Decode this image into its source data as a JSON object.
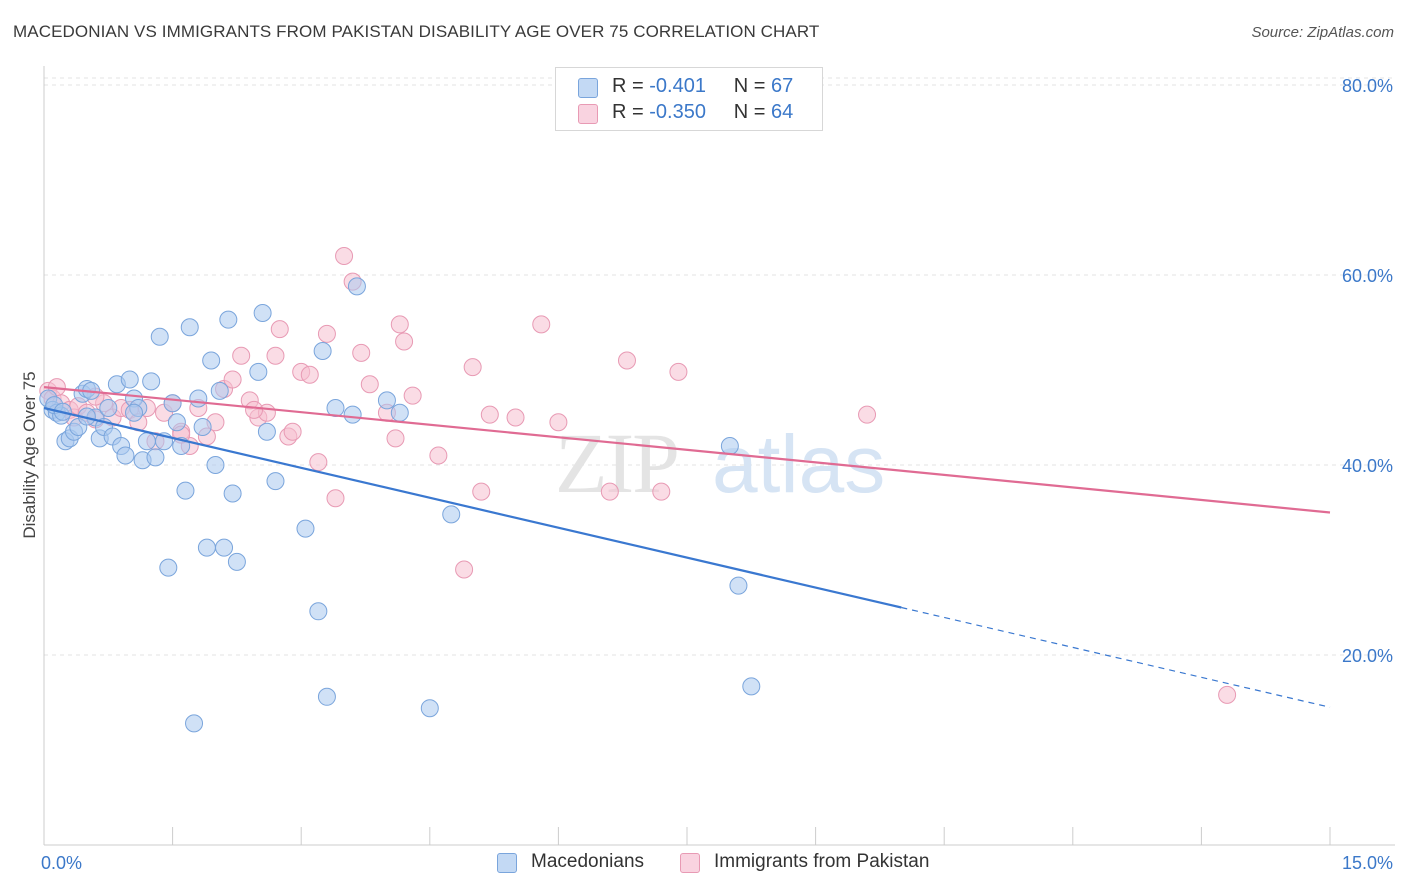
{
  "title": "MACEDONIAN VS IMMIGRANTS FROM PAKISTAN DISABILITY AGE OVER 75 CORRELATION CHART",
  "source": "Source: ZipAtlas.com",
  "watermark": {
    "zip": "ZIP",
    "atlas": "atlas"
  },
  "legend_top": [
    {
      "r_label": "R =",
      "r_value": "-0.401",
      "n_label": "N =",
      "n_value": "67"
    },
    {
      "r_label": "R =",
      "r_value": "-0.350",
      "n_label": "N =",
      "n_value": "64"
    }
  ],
  "legend_bottom": [
    "Macedonians",
    "Immigrants from Pakistan"
  ],
  "colors": {
    "blue_fill": "#a9c8ef",
    "blue_stroke": "#7aa5dc",
    "blue_line": "#3a78d0",
    "pink_fill": "#f5bfd0",
    "pink_stroke": "#e89ab4",
    "pink_line": "#e06b93",
    "grid": "#e3e3e3",
    "axis_text": "#3b78c9"
  },
  "chart_data": {
    "type": "scatter",
    "title": "MACEDONIAN VS IMMIGRANTS FROM PAKISTAN DISABILITY AGE OVER 75 CORRELATION CHART",
    "xlabel": "",
    "ylabel": "Disability Age Over 75",
    "xlim": [
      0,
      15
    ],
    "ylim": [
      0,
      82
    ],
    "x_ticks": [
      {
        "value": 0,
        "label": "0.0%"
      },
      {
        "value": 15,
        "label": "15.0%"
      }
    ],
    "y_ticks": [
      {
        "value": 20,
        "label": "20.0%"
      },
      {
        "value": 40,
        "label": "40.0%"
      },
      {
        "value": 60,
        "label": "60.0%"
      },
      {
        "value": 80,
        "label": "80.0%"
      }
    ],
    "grid": true,
    "legend_position": "top-center",
    "series": [
      {
        "name": "Macedonians",
        "R": -0.401,
        "N": 67,
        "trend": {
          "x0": 0.0,
          "y0": 46.0,
          "x1": 10.0,
          "y1": 25.0,
          "dash_to_x": 15.0,
          "dash_to_y": 14.5
        },
        "points": [
          [
            0.05,
            47.0
          ],
          [
            0.1,
            45.8
          ],
          [
            0.15,
            45.5
          ],
          [
            0.2,
            45.2
          ],
          [
            0.25,
            42.5
          ],
          [
            0.3,
            42.8
          ],
          [
            0.35,
            43.5
          ],
          [
            0.4,
            44.0
          ],
          [
            0.45,
            47.5
          ],
          [
            0.5,
            48.0
          ],
          [
            0.55,
            47.8
          ],
          [
            0.6,
            45.0
          ],
          [
            0.65,
            42.8
          ],
          [
            0.7,
            44.0
          ],
          [
            0.75,
            46.0
          ],
          [
            0.8,
            43.0
          ],
          [
            0.85,
            48.5
          ],
          [
            0.9,
            42.0
          ],
          [
            0.95,
            41.0
          ],
          [
            1.0,
            49.0
          ],
          [
            1.05,
            47.0
          ],
          [
            1.1,
            46.0
          ],
          [
            1.15,
            40.5
          ],
          [
            1.2,
            42.5
          ],
          [
            1.25,
            48.8
          ],
          [
            1.3,
            40.8
          ],
          [
            1.35,
            53.5
          ],
          [
            1.4,
            42.5
          ],
          [
            1.45,
            29.2
          ],
          [
            1.5,
            46.5
          ],
          [
            1.55,
            44.5
          ],
          [
            1.6,
            42.0
          ],
          [
            1.65,
            37.3
          ],
          [
            1.7,
            54.5
          ],
          [
            1.75,
            12.8
          ],
          [
            1.8,
            47.0
          ],
          [
            1.85,
            44.0
          ],
          [
            1.9,
            31.3
          ],
          [
            1.95,
            51.0
          ],
          [
            2.0,
            40.0
          ],
          [
            2.05,
            47.8
          ],
          [
            2.1,
            31.3
          ],
          [
            2.15,
            55.3
          ],
          [
            2.2,
            37.0
          ],
          [
            2.25,
            29.8
          ],
          [
            2.5,
            49.8
          ],
          [
            2.55,
            56.0
          ],
          [
            2.6,
            43.5
          ],
          [
            2.7,
            38.3
          ],
          [
            3.05,
            33.3
          ],
          [
            3.2,
            24.6
          ],
          [
            3.25,
            52.0
          ],
          [
            3.3,
            15.6
          ],
          [
            3.4,
            46.0
          ],
          [
            3.6,
            45.3
          ],
          [
            3.65,
            58.8
          ],
          [
            4.0,
            46.8
          ],
          [
            4.15,
            45.5
          ],
          [
            4.5,
            14.4
          ],
          [
            4.75,
            34.8
          ],
          [
            8.0,
            42.0
          ],
          [
            8.1,
            27.3
          ],
          [
            8.25,
            16.7
          ],
          [
            0.12,
            46.3
          ],
          [
            0.22,
            45.6
          ],
          [
            0.5,
            45.1
          ],
          [
            1.05,
            45.5
          ]
        ]
      },
      {
        "name": "Immigrants from Pakistan",
        "R": -0.35,
        "N": 64,
        "trend": {
          "x0": 0.0,
          "y0": 48.2,
          "x1": 15.0,
          "y1": 35.0
        },
        "points": [
          [
            0.05,
            47.8
          ],
          [
            0.1,
            47.0
          ],
          [
            0.2,
            46.5
          ],
          [
            0.3,
            45.8
          ],
          [
            0.35,
            45.0
          ],
          [
            0.4,
            46.2
          ],
          [
            0.5,
            45.5
          ],
          [
            0.6,
            44.8
          ],
          [
            0.7,
            46.5
          ],
          [
            0.8,
            45.0
          ],
          [
            0.9,
            46.0
          ],
          [
            1.0,
            45.8
          ],
          [
            1.1,
            44.5
          ],
          [
            1.2,
            46.0
          ],
          [
            1.3,
            42.5
          ],
          [
            1.4,
            45.5
          ],
          [
            1.5,
            46.5
          ],
          [
            1.6,
            43.5
          ],
          [
            1.7,
            42.0
          ],
          [
            1.8,
            46.0
          ],
          [
            1.9,
            43.0
          ],
          [
            2.0,
            44.5
          ],
          [
            2.1,
            48.0
          ],
          [
            2.2,
            49.0
          ],
          [
            2.3,
            51.5
          ],
          [
            2.4,
            46.8
          ],
          [
            2.5,
            45.0
          ],
          [
            2.6,
            45.5
          ],
          [
            2.7,
            51.5
          ],
          [
            2.75,
            54.3
          ],
          [
            2.85,
            43.0
          ],
          [
            2.9,
            43.5
          ],
          [
            3.0,
            49.8
          ],
          [
            3.1,
            49.5
          ],
          [
            3.2,
            40.3
          ],
          [
            3.3,
            53.8
          ],
          [
            3.4,
            36.5
          ],
          [
            3.5,
            62.0
          ],
          [
            3.6,
            59.3
          ],
          [
            3.7,
            51.8
          ],
          [
            3.8,
            48.5
          ],
          [
            4.0,
            45.5
          ],
          [
            4.1,
            42.8
          ],
          [
            4.15,
            54.8
          ],
          [
            4.2,
            53.0
          ],
          [
            4.3,
            47.3
          ],
          [
            4.6,
            41.0
          ],
          [
            5.0,
            50.3
          ],
          [
            5.1,
            37.2
          ],
          [
            5.2,
            45.3
          ],
          [
            5.5,
            45.0
          ],
          [
            5.8,
            54.8
          ],
          [
            6.0,
            44.5
          ],
          [
            6.6,
            37.2
          ],
          [
            6.8,
            51.0
          ],
          [
            7.2,
            37.2
          ],
          [
            7.4,
            49.8
          ],
          [
            9.6,
            45.3
          ],
          [
            13.8,
            15.8
          ],
          [
            4.9,
            29.0
          ],
          [
            0.15,
            48.2
          ],
          [
            0.6,
            47.2
          ],
          [
            1.6,
            43.2
          ],
          [
            2.45,
            45.8
          ]
        ]
      }
    ]
  }
}
